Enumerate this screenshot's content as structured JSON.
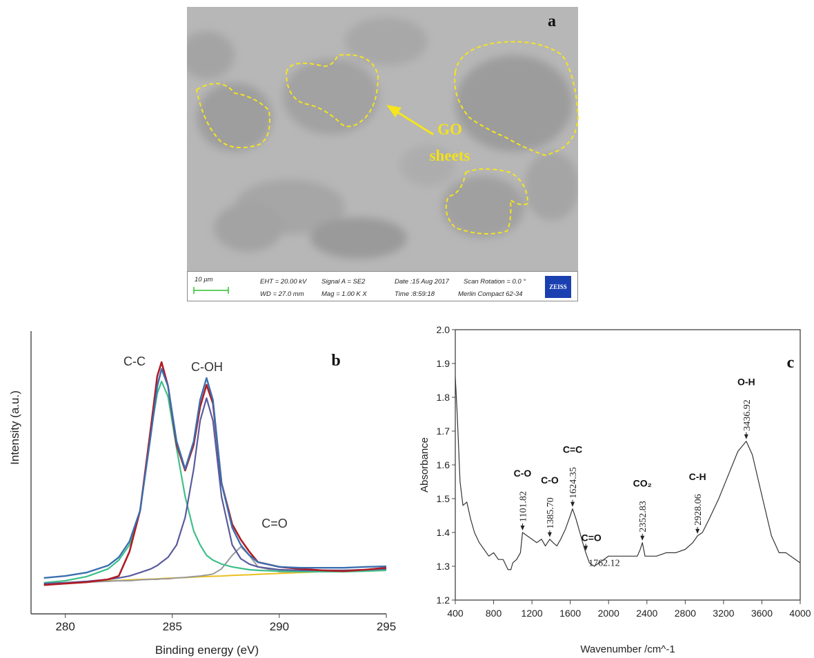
{
  "sem_image": {
    "panel_label": "a",
    "annotation_line1": "GO",
    "annotation_line2": "sheets",
    "scale_bar": "10 µm",
    "eht": "EHT = 20.00 kV",
    "wd": "WD = 27.0 mm",
    "signal": "Signal A = SE2",
    "mag": "Mag =  1.00 K X",
    "date": "Date :15 Aug 2017",
    "time": "Time :8:59:18",
    "scan_rotation": "Scan Rotation =  0.0 °",
    "instrument": "Merlin Compact 62-34",
    "logo": "ZEISS"
  },
  "chart_data": [
    {
      "type": "line",
      "panel_label": "b",
      "xlabel": "Binding energy (eV)",
      "ylabel": "Intensity (a.u.)",
      "annotations": [
        "C-C",
        "C-OH",
        "C=O"
      ],
      "xlim": [
        278.4,
        295
      ],
      "xticks": [
        280,
        285,
        290,
        295
      ],
      "ylim": [
        0,
        10
      ],
      "x": [
        279,
        280,
        281,
        282,
        282.5,
        283,
        283.5,
        284,
        284.3,
        284.5,
        284.8,
        285.2,
        285.6,
        286,
        286.3,
        286.6,
        286.9,
        287.3,
        287.8,
        288.2,
        288.6,
        289,
        290,
        291,
        292,
        293,
        294,
        295
      ],
      "series": [
        {
          "color": "#e8c020",
          "width": 2,
          "values": [
            1.07,
            1.1,
            1.14,
            1.17,
            1.18,
            1.2,
            1.22,
            1.23,
            1.24,
            1.25,
            1.26,
            1.27,
            1.28,
            1.3,
            1.31,
            1.32,
            1.33,
            1.34,
            1.36,
            1.37,
            1.38,
            1.4,
            1.43,
            1.46,
            1.49,
            1.53,
            1.56,
            1.59
          ]
        },
        {
          "color": "#999999",
          "width": 2,
          "values": [
            1.07,
            1.1,
            1.12,
            1.15,
            1.17,
            1.17,
            1.2,
            1.22,
            1.22,
            1.24,
            1.24,
            1.27,
            1.29,
            1.32,
            1.34,
            1.37,
            1.41,
            1.59,
            2.07,
            2.37,
            2.07,
            1.66,
            1.49,
            1.49,
            1.51,
            1.54,
            1.56,
            1.59
          ]
        },
        {
          "color": "#3fbf8a",
          "width": 2.2,
          "values": [
            1.1,
            1.17,
            1.32,
            1.59,
            1.9,
            2.44,
            3.66,
            6.46,
            7.8,
            8.22,
            7.68,
            5.85,
            4.15,
            2.93,
            2.44,
            2.07,
            1.9,
            1.76,
            1.66,
            1.61,
            1.56,
            1.54,
            1.51,
            1.49,
            1.49,
            1.49,
            1.51,
            1.54
          ]
        },
        {
          "color": "#5a5a9e",
          "width": 2.2,
          "values": [
            1.07,
            1.1,
            1.15,
            1.22,
            1.27,
            1.34,
            1.46,
            1.59,
            1.71,
            1.83,
            2.0,
            2.44,
            3.41,
            5.12,
            6.83,
            7.63,
            6.83,
            4.15,
            2.44,
            1.95,
            1.76,
            1.66,
            1.56,
            1.54,
            1.54,
            1.54,
            1.56,
            1.59
          ]
        },
        {
          "color": "#b01c24",
          "width": 2.6,
          "values": [
            1.02,
            1.07,
            1.12,
            1.22,
            1.34,
            2.2,
            3.66,
            6.59,
            8.41,
            8.9,
            8.05,
            5.98,
            5.07,
            5.98,
            7.32,
            8.1,
            7.44,
            4.63,
            3.17,
            2.63,
            2.2,
            1.83,
            1.66,
            1.59,
            1.54,
            1.51,
            1.56,
            1.63
          ]
        },
        {
          "color": "#3a6fb0",
          "width": 2.4,
          "values": [
            1.27,
            1.34,
            1.46,
            1.71,
            2.0,
            2.56,
            3.66,
            6.34,
            8.05,
            8.66,
            8.05,
            6.1,
            5.12,
            6.1,
            7.56,
            8.34,
            7.56,
            4.63,
            3.05,
            2.44,
            2.07,
            1.83,
            1.66,
            1.63,
            1.63,
            1.63,
            1.66,
            1.68
          ]
        }
      ]
    },
    {
      "type": "line",
      "panel_label": "c",
      "xlabel": "Wavenumber /cm^-1",
      "ylabel": "Absorbance",
      "xlim": [
        400,
        4000
      ],
      "xticks": [
        400,
        800,
        1200,
        1600,
        2000,
        2400,
        2800,
        3200,
        3600,
        4000
      ],
      "ylim": [
        1.2,
        2.0
      ],
      "yticks": [
        1.2,
        1.3,
        1.4,
        1.5,
        1.6,
        1.7,
        1.8,
        1.9,
        {
          "value": 2,
          "label": "2.0"
        }
      ],
      "x": [
        400,
        420,
        450,
        480,
        520,
        560,
        600,
        650,
        700,
        750,
        800,
        850,
        900,
        950,
        980,
        1000,
        1040,
        1080,
        1101.82,
        1150,
        1200,
        1250,
        1300,
        1340,
        1385.7,
        1420,
        1460,
        1500,
        1550,
        1600,
        1624.35,
        1660,
        1700,
        1740,
        1762.12,
        1800,
        1850,
        1900,
        1950,
        2000,
        2100,
        2200,
        2300,
        2330,
        2352.83,
        2380,
        2400,
        2500,
        2600,
        2700,
        2800,
        2880,
        2928.06,
        2980,
        3050,
        3150,
        3250,
        3350,
        3436.92,
        3500,
        3600,
        3700,
        3780,
        3850,
        3900,
        4000
      ],
      "series": [
        {
          "color": "#333333",
          "width": 1.2,
          "values": [
            1.86,
            1.75,
            1.55,
            1.48,
            1.49,
            1.44,
            1.4,
            1.37,
            1.35,
            1.33,
            1.34,
            1.32,
            1.32,
            1.29,
            1.29,
            1.31,
            1.32,
            1.34,
            1.4,
            1.39,
            1.38,
            1.37,
            1.38,
            1.36,
            1.38,
            1.37,
            1.36,
            1.38,
            1.41,
            1.45,
            1.47,
            1.44,
            1.4,
            1.36,
            1.34,
            1.31,
            1.3,
            1.31,
            1.32,
            1.33,
            1.33,
            1.33,
            1.33,
            1.35,
            1.37,
            1.33,
            1.33,
            1.33,
            1.34,
            1.34,
            1.35,
            1.37,
            1.39,
            1.4,
            1.44,
            1.5,
            1.57,
            1.64,
            1.67,
            1.63,
            1.51,
            1.39,
            1.34,
            1.34,
            1.33,
            1.31
          ]
        }
      ],
      "peaks": [
        {
          "x": 1101.82,
          "label": "1101.82",
          "y": 1.4,
          "group": "C-O"
        },
        {
          "x": 1385.7,
          "label": "1385.70",
          "y": 1.38,
          "group": "C-O"
        },
        {
          "x": 1624.35,
          "label": "1624.35",
          "y": 1.47,
          "group": "C=C"
        },
        {
          "x": 1762.12,
          "label": "1762.12",
          "y": 1.34,
          "group": "C=O"
        },
        {
          "x": 2352.83,
          "label": "2352.83",
          "y": 1.37,
          "group": "CO₂"
        },
        {
          "x": 2928.06,
          "label": "2928.06",
          "y": 1.39,
          "group": "C-H"
        },
        {
          "x": 3436.92,
          "label": "3436.92",
          "y": 1.67,
          "group": "O-H"
        }
      ]
    }
  ]
}
